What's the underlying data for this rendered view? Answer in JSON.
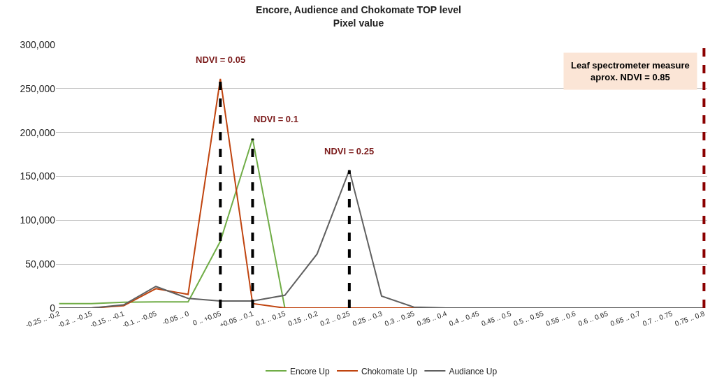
{
  "chart_data": {
    "type": "line",
    "title": "Encore, Audience and Chokomate TOP level",
    "subtitle": "Pixel value",
    "categories": [
      "-0.25 .. -0.2",
      "-0.2 .. -0.15",
      "-0.15 .. -0.1",
      "-0.1 .. -0.05",
      "-0.05 .. 0",
      "0 .. +0.05",
      "+0.05 .. 0.1",
      "0.1 .. 0.15",
      "0.15 .. 0.2",
      "0.2 .. 0.25",
      "0.25 .. 0.3",
      "0.3 .. 0.35",
      "0.35 .. 0.4",
      "0.4 .. 0.45",
      "0.45 .. 0.5",
      "0.5 .. 0.55",
      "0.55 .. 0.6",
      "0.6 .. 0.65",
      "0.65 .. 0.7",
      "0.7 .. 0.75",
      "0.75 .. 0.8"
    ],
    "series": [
      {
        "name": "Encore Up",
        "color": "#70ad47",
        "values": [
          5000,
          5000,
          6500,
          7000,
          7000,
          76000,
          193000,
          0,
          null,
          null,
          null,
          null,
          null,
          null,
          null,
          null,
          null,
          null,
          null,
          null,
          null
        ]
      },
      {
        "name": "Chokomate Up",
        "color": "#c0440f",
        "values": [
          0,
          0,
          2500,
          22000,
          15500,
          261000,
          5000,
          0,
          0,
          0,
          0,
          0,
          0,
          0,
          0,
          0,
          0,
          0,
          0,
          0,
          0
        ]
      },
      {
        "name": "Audiance Up",
        "color": "#606060",
        "values": [
          0,
          0,
          3500,
          24500,
          11000,
          8000,
          8000,
          14500,
          61500,
          157000,
          13500,
          1000,
          0,
          0,
          0,
          0,
          0,
          0,
          0,
          0,
          0
        ]
      }
    ],
    "ylim": [
      0,
      300000
    ],
    "yticks": [
      {
        "value": 0,
        "label": "0"
      },
      {
        "value": 50000,
        "label": "50,000"
      },
      {
        "value": 100000,
        "label": "100,000"
      },
      {
        "value": 150000,
        "label": "150,000"
      },
      {
        "value": 200000,
        "label": "200,000"
      },
      {
        "value": 250000,
        "label": "250,000"
      },
      {
        "value": 300000,
        "label": "300,000"
      }
    ],
    "ref_lines": [
      {
        "axis": "x",
        "value": "0 .. +0.05",
        "label": "NDVI = 0.05",
        "color": "#000000",
        "line_style": "dashed"
      },
      {
        "axis": "x",
        "value": "+0.05 .. 0.1",
        "label": "NDVI = 0.1",
        "color": "#000000",
        "line_style": "dashed"
      },
      {
        "axis": "x",
        "value": "0.2 .. 0.25",
        "label": "NDVI = 0.25",
        "color": "#000000",
        "line_style": "dashed"
      },
      {
        "axis": "x",
        "value": "0.75 .. 0.8",
        "label": "Leaf spectrometer measure\naprox. NDVI = 0.85",
        "color": "#8b0000",
        "line_style": "dashed"
      }
    ],
    "grid": "y",
    "legend": "bottom",
    "marker": "none",
    "line_style": "solid"
  }
}
